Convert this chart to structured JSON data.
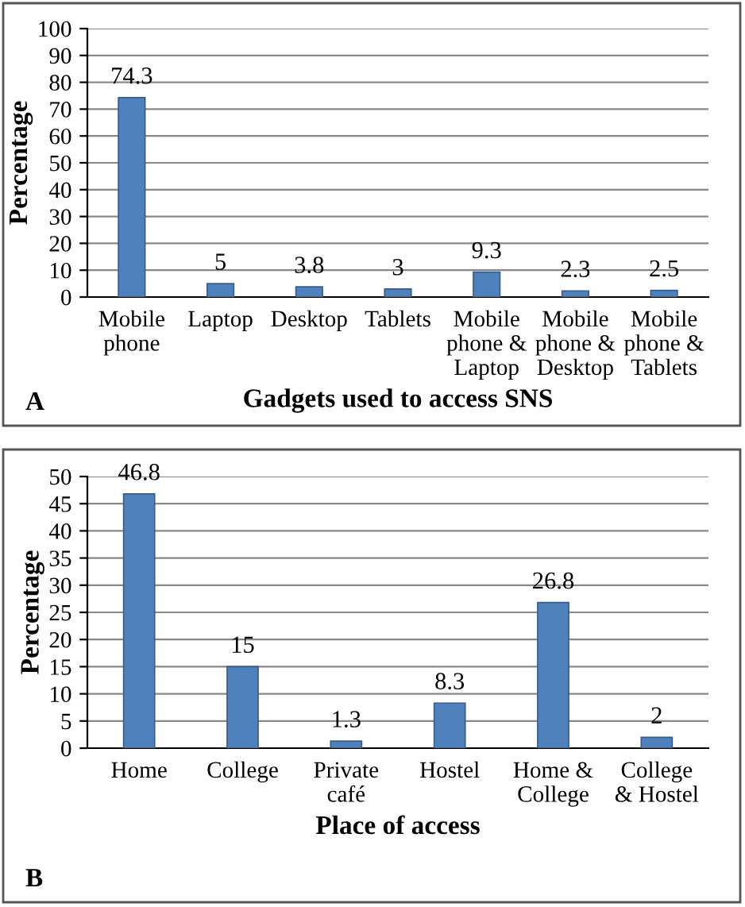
{
  "chart_data": [
    {
      "type": "bar",
      "xlabel": "Gadgets used to access SNS",
      "ylabel": "Percentage",
      "annotations": [
        "A"
      ],
      "categories": [
        "Mobile\nphone",
        "Laptop",
        "Desktop",
        "Tablets",
        "Mobile\nphone &\nLaptop",
        "Mobile\nphone &\nDesktop",
        "Mobile\nphone &\nTablets"
      ],
      "values": [
        74.3,
        5,
        3.8,
        3,
        9.3,
        2.3,
        2.5
      ],
      "color": "#4f81bd",
      "data_labels": true,
      "ylim": [
        0,
        100
      ],
      "yticks": [
        0,
        10,
        20,
        30,
        40,
        50,
        60,
        70,
        80,
        90,
        100
      ],
      "grid": "y",
      "legend": false
    },
    {
      "type": "bar",
      "xlabel": "Place of access",
      "ylabel": "Percentage",
      "annotations": [
        "B"
      ],
      "categories": [
        "Home",
        "College",
        "Private\ncafé",
        "Hostel",
        "Home &\nCollege",
        "College\n& Hostel"
      ],
      "values": [
        46.8,
        15,
        1.3,
        8.3,
        26.8,
        2
      ],
      "color": "#4f81bd",
      "data_labels": true,
      "ylim": [
        0,
        50
      ],
      "yticks": [
        0,
        5,
        10,
        15,
        20,
        25,
        30,
        35,
        40,
        45,
        50
      ],
      "grid": "y",
      "legend": false
    }
  ]
}
